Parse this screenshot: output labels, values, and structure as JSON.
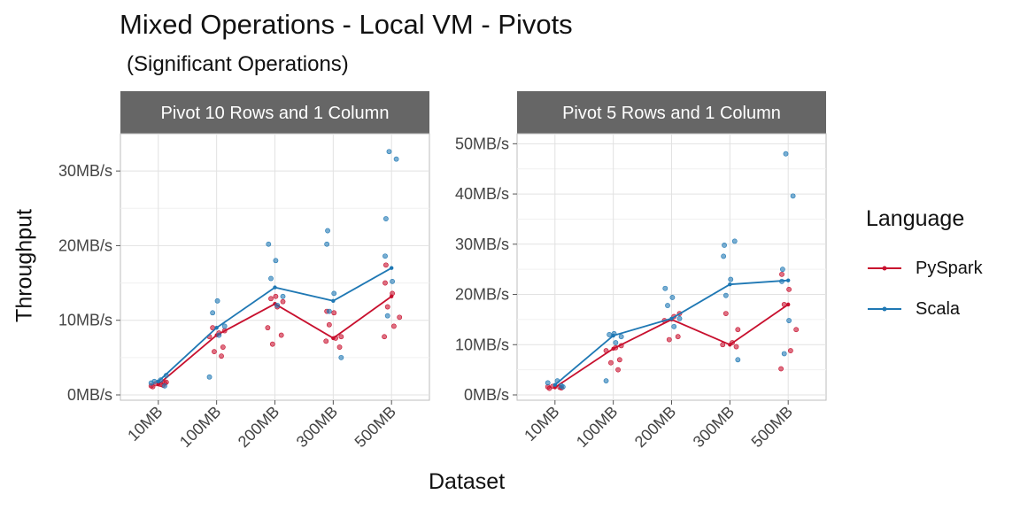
{
  "title": "Mixed Operations - Local VM - Pivots",
  "subtitle": "(Significant Operations)",
  "legend": {
    "title": "Language",
    "items": [
      {
        "label": "PySpark",
        "color": "#c8102e"
      },
      {
        "label": "Scala",
        "color": "#1f78b4"
      }
    ]
  },
  "chart_data": {
    "type": "line",
    "xlabel": "Dataset",
    "ylabel": "Throughput",
    "categories": [
      "10MB",
      "100MB",
      "200MB",
      "300MB",
      "500MB"
    ],
    "grid": true,
    "legend_position": "right",
    "facets": [
      {
        "title": "Pivot 10 Rows and 1 Column",
        "ylim": [
          0,
          35
        ],
        "yticks": [
          0,
          10,
          20,
          30
        ],
        "ytick_labels": [
          "0MB/s",
          "10MB/s",
          "20MB/s",
          "30MB/s"
        ],
        "series": [
          {
            "name": "PySpark",
            "color": "#c8102e",
            "mean": [
              1.4,
              8.0,
              12.2,
              7.6,
              13.2
            ],
            "points": [
              [
                1.1,
                1.3,
                1.5,
                1.6,
                1.2,
                1.4,
                1.7
              ],
              [
                5.2,
                5.8,
                6.4,
                7.8,
                8.3,
                8.6,
                9.0
              ],
              [
                6.8,
                8.0,
                9.0,
                11.8,
                12.5,
                12.9,
                13.2
              ],
              [
                6.4,
                7.2,
                7.6,
                7.8,
                9.4,
                11.0,
                11.2
              ],
              [
                7.8,
                9.2,
                10.4,
                11.8,
                13.6,
                15.0,
                17.4
              ]
            ]
          },
          {
            "name": "Scala",
            "color": "#1f78b4",
            "mean": [
              1.8,
              9.0,
              14.4,
              12.6,
              17.0
            ],
            "points": [
              [
                1.2,
                1.6,
                2.0,
                2.6,
                1.8
              ],
              [
                2.4,
                8.0,
                9.2,
                11.0,
                12.6
              ],
              [
                12.0,
                13.2,
                15.6,
                18.0,
                20.2
              ],
              [
                5.0,
                11.2,
                13.6,
                20.2,
                22.0
              ],
              [
                10.6,
                15.2,
                18.6,
                23.6,
                31.6,
                32.6
              ]
            ]
          }
        ]
      },
      {
        "title": "Pivot 5 Rows and 1 Column",
        "ylim": [
          0,
          52
        ],
        "yticks": [
          0,
          10,
          20,
          30,
          40,
          50
        ],
        "ytick_labels": [
          "0MB/s",
          "10MB/s",
          "20MB/s",
          "30MB/s",
          "40MB/s",
          "50MB/s"
        ],
        "series": [
          {
            "name": "PySpark",
            "color": "#c8102e",
            "mean": [
              1.5,
              9.2,
              15.0,
              10.0,
              18.0
            ],
            "points": [
              [
                1.3,
                1.5,
                1.7,
                1.4,
                1.6
              ],
              [
                5.0,
                6.4,
                7.0,
                8.8,
                9.4,
                9.8
              ],
              [
                11.0,
                11.6,
                14.8,
                15.6,
                16.2
              ],
              [
                9.6,
                10.0,
                10.4,
                13.0,
                16.2
              ],
              [
                5.2,
                8.8,
                13.0,
                18.0,
                21.0,
                24.0
              ]
            ]
          },
          {
            "name": "Scala",
            "color": "#1f78b4",
            "mean": [
              2.0,
              11.8,
              15.2,
              22.0,
              22.8
            ],
            "points": [
              [
                1.8,
                2.4,
                2.8,
                1.6
              ],
              [
                2.8,
                10.4,
                11.6,
                12.0,
                12.2
              ],
              [
                13.6,
                15.2,
                17.8,
                19.4,
                21.2
              ],
              [
                7.0,
                19.8,
                23.0,
                27.6,
                29.8,
                30.6
              ],
              [
                8.2,
                14.8,
                22.6,
                25.0,
                39.6,
                48.0
              ]
            ]
          }
        ]
      }
    ]
  }
}
